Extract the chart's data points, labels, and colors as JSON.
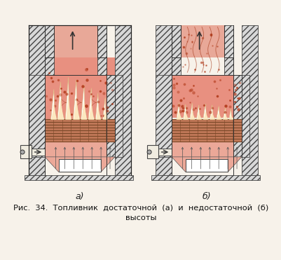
{
  "bg_color": "#f7f2ea",
  "hatch_color": "#444444",
  "wall_fc": "#d8d8d8",
  "pink_hot": "#e89080",
  "pink_med": "#eba898",
  "pink_chimney": "#e8a898",
  "flame_white": "#ffffff",
  "flame_cream": "#fff8e8",
  "grate_color": "#c07858",
  "grate_line": "#7a4828",
  "airbox_color": "#f0ece0",
  "smoke_dot": "#b03818",
  "caption_a": "a)",
  "caption_b": "б)",
  "title_line1": "Рис.  34.  Топливник  достаточной  (а)  и  недостаточной  (б)",
  "title_line2": "высоты"
}
